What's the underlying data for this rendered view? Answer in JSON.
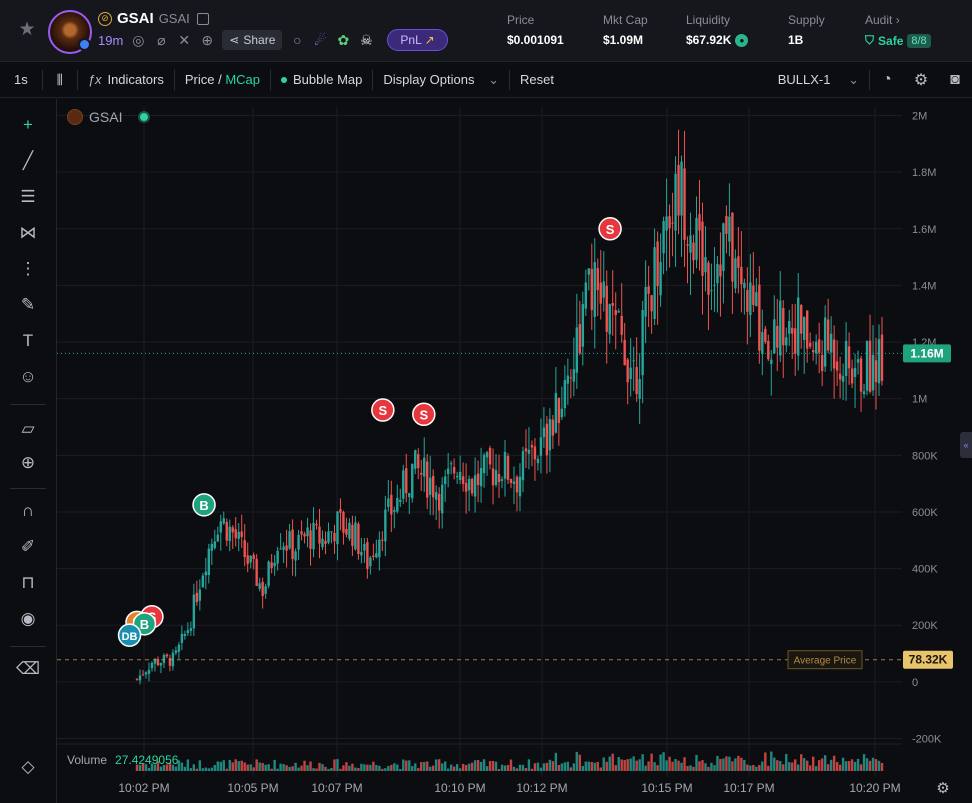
{
  "token": {
    "symbol": "GSAI",
    "name": "GSAI",
    "age": "19m",
    "share_label": "Share",
    "pnl_label": "PnL"
  },
  "stats": {
    "price": {
      "label": "Price",
      "value": "$0.001091"
    },
    "mcap": {
      "label": "Mkt Cap",
      "value": "$1.09M"
    },
    "liquidity": {
      "label": "Liquidity",
      "value": "$67.92K"
    },
    "supply": {
      "label": "Supply",
      "value": "1B"
    },
    "audit": {
      "label": "Audit",
      "arrow": "›",
      "value": "Safe",
      "badge": "8/8"
    }
  },
  "toolbar": {
    "interval": "1s",
    "indicators": "Indicators",
    "price_label": "Price",
    "slash": "/",
    "mcap_label": "MCap",
    "bubble_map": "Bubble Map",
    "display_options": "Display Options",
    "reset": "Reset",
    "exchange": "BULLX-1"
  },
  "chart_legend": {
    "symbol": "GSAI",
    "volume_label": "Volume",
    "volume_value": "27.4249056"
  },
  "icons": {
    "header": [
      "star-icon",
      "pump-icon",
      "copy-icon",
      "search-icon",
      "link-icon",
      "x-icon",
      "globe-icon",
      "share-icon",
      "magnify-icon",
      "alien-icon",
      "frog-icon",
      "skull-icon"
    ],
    "tools": [
      "crosshair-icon",
      "trendline-icon",
      "fib-icon",
      "pattern-icon",
      "measure-lines-icon",
      "brush-icon",
      "text-icon",
      "emoji-icon",
      "ruler-icon",
      "zoom-icon",
      "magnet-icon",
      "lock-pencil-icon",
      "unlock-icon",
      "eye-icon",
      "trash-icon",
      "layers-icon"
    ]
  },
  "colors": {
    "up": "#26a69a",
    "down": "#ef5350",
    "accent": "#2bd4a0",
    "sell_marker": "#e5373d",
    "buy_marker": "#1fa37c",
    "dev_marker": "#e5802f",
    "dev_buy_marker": "#1b8fb0",
    "avg_price": "#c79a4a"
  },
  "chart_data": {
    "type": "candlestick",
    "y_unit": "market cap (USD)",
    "y_ticks": [
      "2M",
      "1.8M",
      "1.6M",
      "1.4M",
      "1.2M",
      "1M",
      "800K",
      "600K",
      "400K",
      "200K",
      "0",
      "-200K"
    ],
    "y_tick_values": [
      2000000,
      1800000,
      1600000,
      1400000,
      1200000,
      1000000,
      800000,
      600000,
      400000,
      200000,
      0,
      -200000
    ],
    "x_ticks": [
      "10:02 PM",
      "10:05 PM",
      "10:07 PM",
      "10:10 PM",
      "10:12 PM",
      "10:15 PM",
      "10:17 PM",
      "10:20 PM"
    ],
    "ylim": [
      -230000,
      2030000
    ],
    "current_value_label": "1.16M",
    "current_value": 1160000,
    "average_price_label": "Average Price",
    "average_price_value_label": "78.32K",
    "average_price_value": 78320,
    "envelope_points": [
      {
        "t": 0.0,
        "v": 10000
      },
      {
        "t": 0.02,
        "v": 70000
      },
      {
        "t": 0.05,
        "v": 80000
      },
      {
        "t": 0.07,
        "v": 200000
      },
      {
        "t": 0.09,
        "v": 420000
      },
      {
        "t": 0.11,
        "v": 580000
      },
      {
        "t": 0.13,
        "v": 520000
      },
      {
        "t": 0.15,
        "v": 420000
      },
      {
        "t": 0.17,
        "v": 320000
      },
      {
        "t": 0.19,
        "v": 520000
      },
      {
        "t": 0.21,
        "v": 470000
      },
      {
        "t": 0.23,
        "v": 520000
      },
      {
        "t": 0.25,
        "v": 500000
      },
      {
        "t": 0.27,
        "v": 560000
      },
      {
        "t": 0.29,
        "v": 530000
      },
      {
        "t": 0.31,
        "v": 420000
      },
      {
        "t": 0.33,
        "v": 560000
      },
      {
        "t": 0.35,
        "v": 640000
      },
      {
        "t": 0.37,
        "v": 750000
      },
      {
        "t": 0.39,
        "v": 720000
      },
      {
        "t": 0.41,
        "v": 660000
      },
      {
        "t": 0.43,
        "v": 780000
      },
      {
        "t": 0.45,
        "v": 700000
      },
      {
        "t": 0.47,
        "v": 740000
      },
      {
        "t": 0.49,
        "v": 760000
      },
      {
        "t": 0.51,
        "v": 720000
      },
      {
        "t": 0.53,
        "v": 800000
      },
      {
        "t": 0.55,
        "v": 850000
      },
      {
        "t": 0.57,
        "v": 1000000
      },
      {
        "t": 0.59,
        "v": 1200000
      },
      {
        "t": 0.61,
        "v": 1400000
      },
      {
        "t": 0.63,
        "v": 1300000
      },
      {
        "t": 0.65,
        "v": 1200000
      },
      {
        "t": 0.67,
        "v": 1100000
      },
      {
        "t": 0.69,
        "v": 1400000
      },
      {
        "t": 0.71,
        "v": 1650000
      },
      {
        "t": 0.73,
        "v": 1750000
      },
      {
        "t": 0.75,
        "v": 1550000
      },
      {
        "t": 0.77,
        "v": 1450000
      },
      {
        "t": 0.79,
        "v": 1580000
      },
      {
        "t": 0.81,
        "v": 1400000
      },
      {
        "t": 0.83,
        "v": 1300000
      },
      {
        "t": 0.85,
        "v": 1200000
      },
      {
        "t": 0.87,
        "v": 1300000
      },
      {
        "t": 0.89,
        "v": 1250000
      },
      {
        "t": 0.91,
        "v": 1150000
      },
      {
        "t": 0.93,
        "v": 1200000
      },
      {
        "t": 0.95,
        "v": 1120000
      },
      {
        "t": 0.97,
        "v": 1080000
      },
      {
        "t": 1.0,
        "v": 1160000
      }
    ],
    "trade_markers": [
      {
        "label": "S",
        "kind": "sell",
        "t": 0.02,
        "v": 230000
      },
      {
        "label": "D",
        "kind": "dev",
        "t": 0.0,
        "v": 210000
      },
      {
        "label": "B",
        "kind": "buy",
        "t": 0.01,
        "v": 205000
      },
      {
        "label": "DB",
        "kind": "dev_buy",
        "t": -0.01,
        "v": 165000
      },
      {
        "label": "B",
        "kind": "buy",
        "t": 0.09,
        "v": 625000
      },
      {
        "label": "S",
        "kind": "sell",
        "t": 0.33,
        "v": 960000
      },
      {
        "label": "S",
        "kind": "sell",
        "t": 0.385,
        "v": 945000
      },
      {
        "label": "S",
        "kind": "sell",
        "t": 0.635,
        "v": 1600000
      }
    ]
  }
}
